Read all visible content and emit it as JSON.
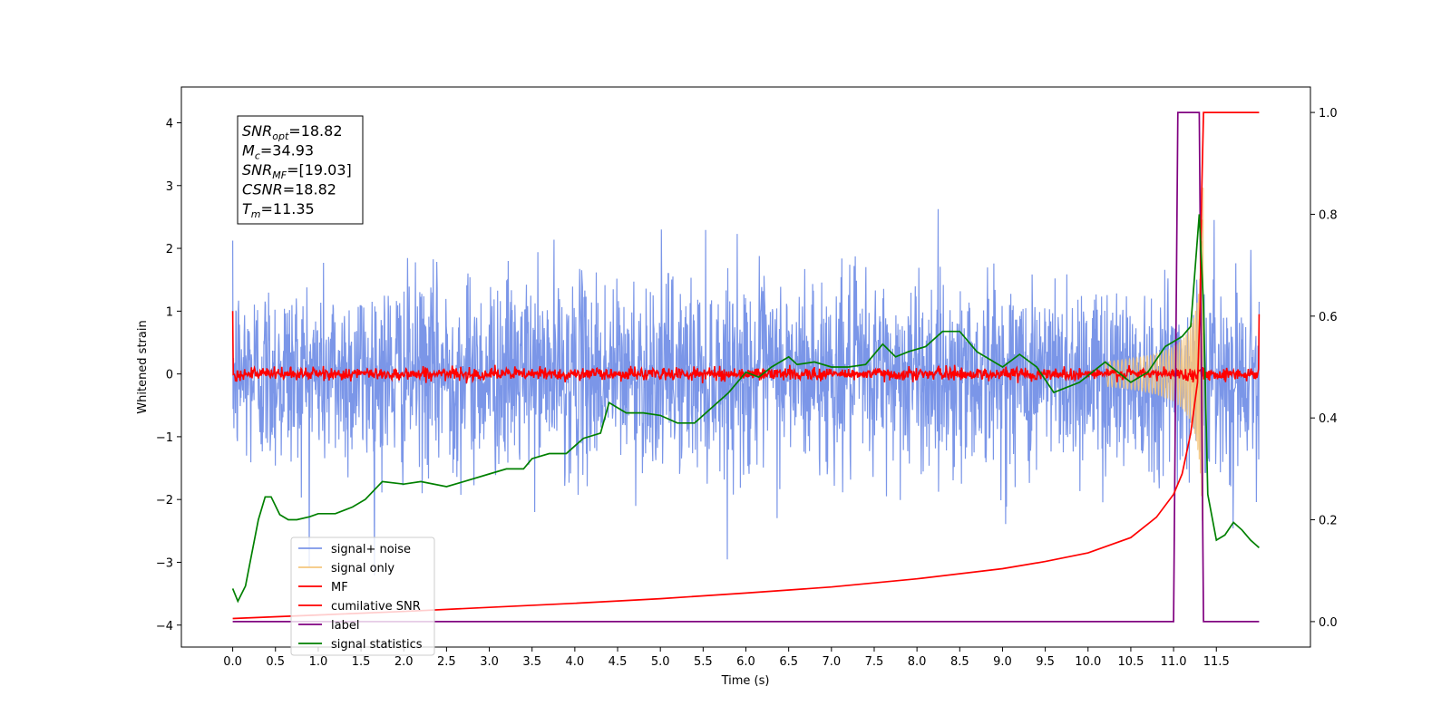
{
  "chart_data": {
    "type": "line",
    "xlabel": "Time (s)",
    "ylabel": "Whitened strain",
    "xlim": [
      -0.6,
      12.6
    ],
    "ylim_left": [
      -4.35,
      4.57
    ],
    "ylim_right": [
      -0.05,
      1.05
    ],
    "x_ticks": [
      "0.0",
      "0.5",
      "1.0",
      "1.5",
      "2.0",
      "2.5",
      "3.0",
      "3.5",
      "4.0",
      "4.5",
      "5.0",
      "5.5",
      "6.0",
      "6.5",
      "7.0",
      "7.5",
      "8.0",
      "8.5",
      "9.0",
      "9.5",
      "10.0",
      "10.5",
      "11.0",
      "11.5"
    ],
    "y_ticks_left": [
      "−4",
      "−3",
      "−2",
      "−1",
      "0",
      "1",
      "2",
      "3",
      "4"
    ],
    "y_ticks_right": [
      "0.0",
      "0.2",
      "0.4",
      "0.6",
      "0.8",
      "1.0"
    ],
    "grid": false,
    "legend_position": "lower-left",
    "annotation": {
      "lines": [
        {
          "base": "SNR",
          "sub": "opt",
          "value": "=18.82"
        },
        {
          "base": "M",
          "sub": "c",
          "value": "=34.93"
        },
        {
          "base": "SNR",
          "sub": "MF",
          "value": "=[19.03]"
        },
        {
          "base": "CSNR",
          "sub": "",
          "value": "=18.82"
        },
        {
          "base": "T",
          "sub": "m",
          "value": "=11.35"
        }
      ]
    },
    "series": [
      {
        "name": "signal+ noise",
        "color": "#7b96e8",
        "axis": "left",
        "kind": "noise",
        "t_range": [
          0,
          12
        ],
        "amplitude_std": 0.9,
        "spike_max": 3.3
      },
      {
        "name": "signal only",
        "color": "#f5c77e",
        "axis": "left",
        "kind": "chirp",
        "t_start": 10.2,
        "t_merger": 11.35,
        "peak_amplitude": 3.4
      },
      {
        "name": "MF",
        "color": "#ff0000",
        "axis": "left",
        "kind": "flat_noise",
        "t_range": [
          0,
          12
        ],
        "amplitude_std": 0.05,
        "edge_values": [
          1.0,
          0.95
        ]
      },
      {
        "name": "cumilative SNR",
        "color": "#ff0000",
        "axis": "right",
        "points": [
          [
            0,
            0.006
          ],
          [
            1,
            0.013
          ],
          [
            2,
            0.02
          ],
          [
            3,
            0.028
          ],
          [
            4,
            0.036
          ],
          [
            5,
            0.045
          ],
          [
            6,
            0.056
          ],
          [
            7,
            0.068
          ],
          [
            8,
            0.084
          ],
          [
            9,
            0.104
          ],
          [
            9.5,
            0.118
          ],
          [
            10,
            0.135
          ],
          [
            10.5,
            0.165
          ],
          [
            10.8,
            0.205
          ],
          [
            11.0,
            0.25
          ],
          [
            11.1,
            0.29
          ],
          [
            11.2,
            0.37
          ],
          [
            11.28,
            0.47
          ],
          [
            11.31,
            0.62
          ],
          [
            11.33,
            0.85
          ],
          [
            11.35,
            1.0
          ],
          [
            12.0,
            1.0
          ]
        ]
      },
      {
        "name": "label",
        "color": "#800080",
        "axis": "right",
        "points": [
          [
            0,
            0
          ],
          [
            11.0,
            0
          ],
          [
            11.05,
            1.0
          ],
          [
            11.3,
            1.0
          ],
          [
            11.35,
            0
          ],
          [
            12.0,
            0
          ]
        ]
      },
      {
        "name": "signal statistics",
        "color": "#008000",
        "axis": "right",
        "points": [
          [
            0,
            0.065
          ],
          [
            0.06,
            0.04
          ],
          [
            0.15,
            0.07
          ],
          [
            0.3,
            0.2
          ],
          [
            0.38,
            0.245
          ],
          [
            0.45,
            0.245
          ],
          [
            0.55,
            0.21
          ],
          [
            0.65,
            0.2
          ],
          [
            0.75,
            0.2
          ],
          [
            0.9,
            0.206
          ],
          [
            1.0,
            0.212
          ],
          [
            1.2,
            0.212
          ],
          [
            1.4,
            0.225
          ],
          [
            1.55,
            0.24
          ],
          [
            1.75,
            0.275
          ],
          [
            2.0,
            0.27
          ],
          [
            2.2,
            0.275
          ],
          [
            2.5,
            0.265
          ],
          [
            2.7,
            0.275
          ],
          [
            3.0,
            0.29
          ],
          [
            3.2,
            0.3
          ],
          [
            3.4,
            0.3
          ],
          [
            3.5,
            0.32
          ],
          [
            3.7,
            0.33
          ],
          [
            3.9,
            0.33
          ],
          [
            4.1,
            0.36
          ],
          [
            4.3,
            0.37
          ],
          [
            4.4,
            0.43
          ],
          [
            4.6,
            0.41
          ],
          [
            4.8,
            0.41
          ],
          [
            5.0,
            0.405
          ],
          [
            5.2,
            0.39
          ],
          [
            5.4,
            0.39
          ],
          [
            5.6,
            0.42
          ],
          [
            5.8,
            0.45
          ],
          [
            6.0,
            0.49
          ],
          [
            6.15,
            0.48
          ],
          [
            6.3,
            0.5
          ],
          [
            6.5,
            0.52
          ],
          [
            6.6,
            0.505
          ],
          [
            6.8,
            0.51
          ],
          [
            7.0,
            0.5
          ],
          [
            7.2,
            0.5
          ],
          [
            7.4,
            0.505
          ],
          [
            7.6,
            0.545
          ],
          [
            7.75,
            0.52
          ],
          [
            7.9,
            0.53
          ],
          [
            8.1,
            0.54
          ],
          [
            8.3,
            0.57
          ],
          [
            8.5,
            0.57
          ],
          [
            8.7,
            0.53
          ],
          [
            9.0,
            0.5
          ],
          [
            9.2,
            0.525
          ],
          [
            9.4,
            0.5
          ],
          [
            9.6,
            0.45
          ],
          [
            9.9,
            0.47
          ],
          [
            10.2,
            0.51
          ],
          [
            10.5,
            0.47
          ],
          [
            10.7,
            0.49
          ],
          [
            10.9,
            0.54
          ],
          [
            11.1,
            0.56
          ],
          [
            11.2,
            0.58
          ],
          [
            11.3,
            0.8
          ],
          [
            11.35,
            0.62
          ],
          [
            11.4,
            0.25
          ],
          [
            11.5,
            0.16
          ],
          [
            11.6,
            0.17
          ],
          [
            11.7,
            0.195
          ],
          [
            11.8,
            0.18
          ],
          [
            11.9,
            0.16
          ],
          [
            12.0,
            0.145
          ]
        ]
      }
    ]
  }
}
